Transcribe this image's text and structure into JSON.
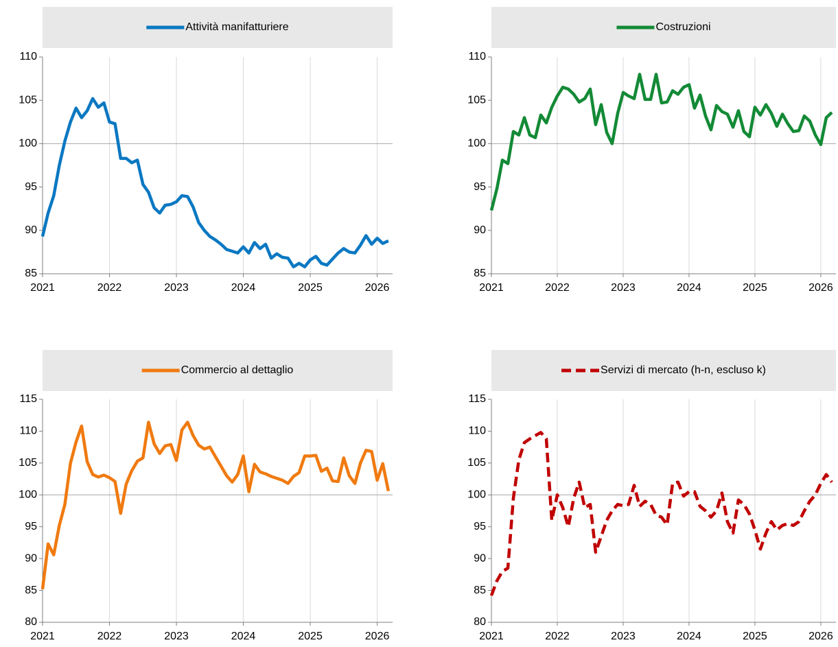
{
  "chart_data": [
    {
      "type": "line",
      "x": [
        2021,
        2021.083,
        2021.167,
        2021.25,
        2021.333,
        2021.417,
        2021.5,
        2021.583,
        2021.667,
        2021.75,
        2021.833,
        2021.917,
        2022,
        2022.083,
        2022.167,
        2022.25,
        2022.333,
        2022.417,
        2022.5,
        2022.583,
        2022.667,
        2022.75,
        2022.833,
        2022.917,
        2023,
        2023.083,
        2023.167,
        2023.25,
        2023.333,
        2023.417,
        2023.5,
        2023.583,
        2023.667,
        2023.75,
        2023.833,
        2023.917,
        2024,
        2024.083,
        2024.167,
        2024.25,
        2024.333,
        2024.417,
        2024.5,
        2024.583,
        2024.667,
        2024.75,
        2024.833,
        2024.917,
        2025,
        2025.083,
        2025.167,
        2025.25,
        2025.333,
        2025.417,
        2025.5,
        2025.583,
        2025.667,
        2025.75,
        2025.833,
        2025.917,
        2026,
        2026.083,
        2026.167
      ],
      "series": [
        {
          "name": "Attività manifatturiere",
          "color": "#0a78c2",
          "values": [
            89.3,
            92,
            94,
            97.5,
            100.3,
            102.5,
            104.1,
            103,
            103.8,
            105.2,
            104.2,
            104.7,
            102.5,
            102.3,
            98.3,
            98.3,
            97.8,
            98.1,
            95.3,
            94.4,
            92.6,
            92,
            92.9,
            93,
            93.3,
            94,
            93.9,
            92.7,
            90.9,
            90,
            89.3,
            88.9,
            88.4,
            87.8,
            87.6,
            87.4,
            88.1,
            87.4,
            88.6,
            87.9,
            88.4,
            86.8,
            87.3,
            86.9,
            86.8,
            85.8,
            86.2,
            85.8,
            86.6,
            87,
            86.2,
            86,
            86.7,
            87.4,
            87.9,
            87.5,
            87.4,
            88.3,
            89.4,
            88.4,
            89.1,
            88.5,
            88.8
          ]
        }
      ],
      "xlim": [
        2021,
        2026.23
      ],
      "xticks": [
        2021,
        2022,
        2023,
        2024,
        2025,
        2026
      ],
      "ylim": [
        85,
        110
      ],
      "yticks": [
        85,
        90,
        95,
        100,
        105,
        110
      ],
      "hline": 100,
      "grid": true
    },
    {
      "type": "line",
      "x": [
        2021,
        2021.083,
        2021.167,
        2021.25,
        2021.333,
        2021.417,
        2021.5,
        2021.583,
        2021.667,
        2021.75,
        2021.833,
        2021.917,
        2022,
        2022.083,
        2022.167,
        2022.25,
        2022.333,
        2022.417,
        2022.5,
        2022.583,
        2022.667,
        2022.75,
        2022.833,
        2022.917,
        2023,
        2023.083,
        2023.167,
        2023.25,
        2023.333,
        2023.417,
        2023.5,
        2023.583,
        2023.667,
        2023.75,
        2023.833,
        2023.917,
        2024,
        2024.083,
        2024.167,
        2024.25,
        2024.333,
        2024.417,
        2024.5,
        2024.583,
        2024.667,
        2024.75,
        2024.833,
        2024.917,
        2025,
        2025.083,
        2025.167,
        2025.25,
        2025.333,
        2025.417,
        2025.5,
        2025.583,
        2025.667,
        2025.75,
        2025.833,
        2025.917,
        2026,
        2026.083,
        2026.167
      ],
      "series": [
        {
          "name": "Costruzioni",
          "color": "#138a36",
          "values": [
            92.3,
            94.8,
            98.1,
            97.7,
            101.4,
            101,
            103,
            101,
            100.7,
            103.3,
            102.4,
            104.2,
            105.5,
            106.5,
            106.3,
            105.7,
            104.8,
            105.2,
            106.3,
            102.2,
            104.5,
            101.3,
            100,
            103.5,
            105.9,
            105.5,
            105.2,
            108,
            105.1,
            105.1,
            108,
            104.7,
            104.8,
            106.1,
            105.7,
            106.5,
            106.8,
            104.1,
            105.6,
            103.2,
            101.6,
            104.4,
            103.7,
            103.4,
            101.9,
            103.8,
            101.4,
            100.8,
            104.2,
            103.3,
            104.5,
            103.5,
            102,
            103.4,
            102.3,
            101.4,
            101.5,
            103.2,
            102.6,
            101,
            99.9,
            103,
            103.6
          ]
        }
      ],
      "xlim": [
        2021,
        2026.23
      ],
      "xticks": [
        2021,
        2022,
        2023,
        2024,
        2025,
        2026
      ],
      "ylim": [
        85,
        110
      ],
      "yticks": [
        85,
        90,
        95,
        100,
        105,
        110
      ],
      "hline": 100,
      "grid": true
    },
    {
      "type": "line",
      "x": [
        2021,
        2021.083,
        2021.167,
        2021.25,
        2021.333,
        2021.417,
        2021.5,
        2021.583,
        2021.667,
        2021.75,
        2021.833,
        2021.917,
        2022,
        2022.083,
        2022.167,
        2022.25,
        2022.333,
        2022.417,
        2022.5,
        2022.583,
        2022.667,
        2022.75,
        2022.833,
        2022.917,
        2023,
        2023.083,
        2023.167,
        2023.25,
        2023.333,
        2023.417,
        2023.5,
        2023.583,
        2023.667,
        2023.75,
        2023.833,
        2023.917,
        2024,
        2024.083,
        2024.167,
        2024.25,
        2024.333,
        2024.417,
        2024.5,
        2024.583,
        2024.667,
        2024.75,
        2024.833,
        2024.917,
        2025,
        2025.083,
        2025.167,
        2025.25,
        2025.333,
        2025.417,
        2025.5,
        2025.583,
        2025.667,
        2025.75,
        2025.833,
        2025.917,
        2026,
        2026.083,
        2026.167
      ],
      "series": [
        {
          "name": "Commercio al dettaglio",
          "color": "#f07a10",
          "values": [
            85.2,
            92.3,
            90.6,
            95.2,
            98.5,
            105,
            108.3,
            110.8,
            105.2,
            103.2,
            102.8,
            103.1,
            102.7,
            102.1,
            97.1,
            101.7,
            103.8,
            105.3,
            105.8,
            111.4,
            108,
            106.5,
            107.7,
            107.9,
            105.4,
            110.2,
            111.4,
            109.3,
            107.8,
            107.2,
            107.5,
            106,
            104.5,
            103,
            102,
            103.2,
            106.1,
            100.5,
            104.8,
            103.6,
            103.3,
            102.9,
            102.6,
            102.3,
            101.8,
            102.9,
            103.5,
            106.1,
            106.1,
            106.2,
            103.7,
            104.2,
            102.2,
            102.1,
            105.8,
            103,
            101.8,
            105,
            107,
            106.8,
            102.3,
            104.9,
            100.6
          ]
        }
      ],
      "xlim": [
        2021,
        2026.23
      ],
      "xticks": [
        2021,
        2022,
        2023,
        2024,
        2025,
        2026
      ],
      "ylim": [
        80,
        115
      ],
      "yticks": [
        80,
        85,
        90,
        95,
        100,
        105,
        110,
        115
      ],
      "hline": 100,
      "grid": true
    },
    {
      "type": "line",
      "x": [
        2021,
        2021.083,
        2021.167,
        2021.25,
        2021.333,
        2021.417,
        2021.5,
        2021.583,
        2021.667,
        2021.75,
        2021.833,
        2021.917,
        2022,
        2022.083,
        2022.167,
        2022.25,
        2022.333,
        2022.417,
        2022.5,
        2022.583,
        2022.667,
        2022.75,
        2022.833,
        2022.917,
        2023,
        2023.083,
        2023.167,
        2023.25,
        2023.333,
        2023.417,
        2023.5,
        2023.583,
        2023.667,
        2023.75,
        2023.833,
        2023.917,
        2024,
        2024.083,
        2024.167,
        2024.25,
        2024.333,
        2024.417,
        2024.5,
        2024.583,
        2024.667,
        2024.75,
        2024.833,
        2024.917,
        2025,
        2025.083,
        2025.167,
        2025.25,
        2025.333,
        2025.417,
        2025.5,
        2025.583,
        2025.667,
        2025.75,
        2025.833,
        2025.917,
        2026,
        2026.083,
        2026.167
      ],
      "series": [
        {
          "name": "Servizi di mercato (h-n, escluso k)",
          "color": "#c00000",
          "dashed": true,
          "values": [
            84.2,
            86.5,
            88,
            88.5,
            99.5,
            105.5,
            108.2,
            108.8,
            109.3,
            109.8,
            108.8,
            96,
            100,
            98,
            95,
            99.5,
            102,
            98,
            98.5,
            91,
            93.5,
            96,
            97.5,
            98.5,
            98.3,
            98.5,
            101.5,
            98.2,
            99,
            98.5,
            96.8,
            96.5,
            95.3,
            101.8,
            102,
            99.8,
            100.5,
            100.5,
            98.2,
            97.5,
            96.5,
            97.5,
            100.3,
            95.8,
            94,
            99.2,
            98.5,
            97,
            94.5,
            91.5,
            94,
            95.8,
            94.5,
            95.2,
            95.5,
            95.2,
            95.8,
            97.5,
            99,
            100,
            101.8,
            103.2,
            102
          ]
        }
      ],
      "xlim": [
        2021,
        2026.23
      ],
      "xticks": [
        2021,
        2022,
        2023,
        2024,
        2025,
        2026
      ],
      "ylim": [
        80,
        115
      ],
      "yticks": [
        80,
        85,
        90,
        95,
        100,
        105,
        110,
        115
      ],
      "hline": 100,
      "grid": true
    }
  ]
}
